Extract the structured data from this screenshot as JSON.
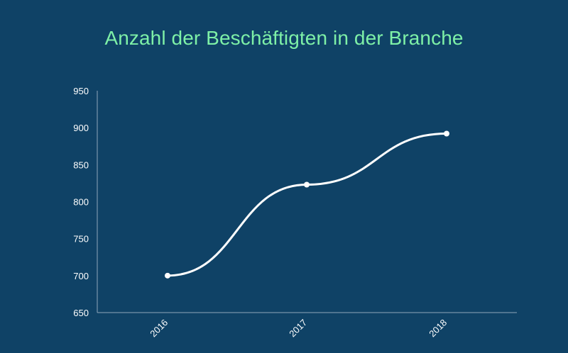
{
  "chart_data": {
    "type": "line",
    "title": "Anzahl der Beschäftigten in der Branche",
    "categories": [
      "2016",
      "2017",
      "2018"
    ],
    "series": [
      {
        "values": [
          700,
          823,
          892
        ]
      }
    ],
    "ylim": [
      650,
      950
    ],
    "yticks": [
      "950",
      "900",
      "850",
      "800",
      "750",
      "700",
      "650"
    ],
    "xlabel": "",
    "ylabel": "",
    "grid": false,
    "legend": "none",
    "colors": {
      "background": "#0f4266",
      "title": "#7ef0a7",
      "line": "#ffffff",
      "axis": "#8fa6ba",
      "text": "#ffffff"
    }
  }
}
